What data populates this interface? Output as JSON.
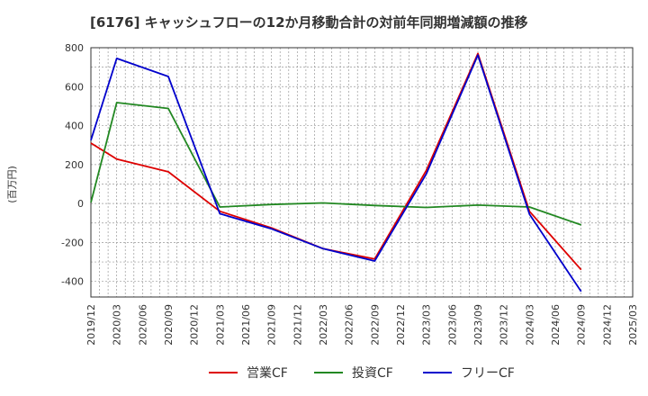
{
  "chart_data": {
    "type": "line",
    "title": "[6176]  キャッシュフローの12か月移動合計の対前年同期増減額の推移",
    "ylabel": "(百万円)",
    "xlabel": "",
    "ylim": [
      -480,
      800
    ],
    "yticks": [
      -400,
      -200,
      0,
      200,
      400,
      600,
      800
    ],
    "x": [
      "2019/12",
      "2020/03",
      "2020/06",
      "2020/09",
      "2020/12",
      "2021/03",
      "2021/06",
      "2021/09",
      "2021/12",
      "2022/03",
      "2022/06",
      "2022/09",
      "2022/12",
      "2023/03",
      "2023/06",
      "2023/09",
      "2023/12",
      "2024/03",
      "2024/06",
      "2024/09",
      "2024/12",
      "2025/03"
    ],
    "grid": true,
    "legend_position": "bottom",
    "series": [
      {
        "name": "営業CF",
        "color": "#dd0000",
        "points": [
          {
            "x": "2019/12",
            "y": 310
          },
          {
            "x": "2020/03",
            "y": 228
          },
          {
            "x": "2020/09",
            "y": 163
          },
          {
            "x": "2021/03",
            "y": -40
          },
          {
            "x": "2021/09",
            "y": -125
          },
          {
            "x": "2022/03",
            "y": -232
          },
          {
            "x": "2022/09",
            "y": -285
          },
          {
            "x": "2023/03",
            "y": 170
          },
          {
            "x": "2023/09",
            "y": 770
          },
          {
            "x": "2024/03",
            "y": -40
          },
          {
            "x": "2024/09",
            "y": -340
          }
        ]
      },
      {
        "name": "投資CF",
        "color": "#228822",
        "points": [
          {
            "x": "2019/12",
            "y": 5
          },
          {
            "x": "2020/03",
            "y": 518
          },
          {
            "x": "2020/09",
            "y": 488
          },
          {
            "x": "2021/03",
            "y": -18
          },
          {
            "x": "2021/09",
            "y": -5
          },
          {
            "x": "2022/03",
            "y": 3
          },
          {
            "x": "2022/09",
            "y": -10
          },
          {
            "x": "2023/03",
            "y": -20
          },
          {
            "x": "2023/09",
            "y": -8
          },
          {
            "x": "2024/03",
            "y": -18
          },
          {
            "x": "2024/09",
            "y": -110
          }
        ]
      },
      {
        "name": "フリーCF",
        "color": "#0000cc",
        "points": [
          {
            "x": "2019/12",
            "y": 325
          },
          {
            "x": "2020/03",
            "y": 745
          },
          {
            "x": "2020/09",
            "y": 652
          },
          {
            "x": "2021/03",
            "y": -52
          },
          {
            "x": "2021/09",
            "y": -130
          },
          {
            "x": "2022/03",
            "y": -232
          },
          {
            "x": "2022/09",
            "y": -295
          },
          {
            "x": "2023/03",
            "y": 152
          },
          {
            "x": "2023/09",
            "y": 762
          },
          {
            "x": "2024/03",
            "y": -55
          },
          {
            "x": "2024/09",
            "y": -452
          }
        ]
      }
    ]
  }
}
